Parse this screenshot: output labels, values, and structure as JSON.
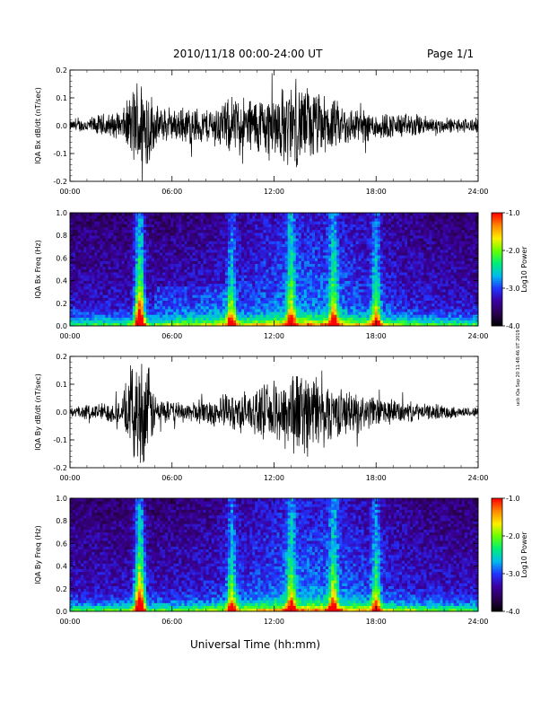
{
  "header": {
    "title": "2010/11/18  00:00-24:00 UT",
    "page": "Page 1/1"
  },
  "side_stamp": "ucb iQa Sep 20 11:48:46 UT 2019",
  "x_axis_title": "Universal Time (hh:mm)",
  "colors": {
    "background": "#ffffff",
    "trace": "#000000",
    "colorbar": [
      "#000000",
      "#2a004f",
      "#3a00a0",
      "#2233ff",
      "#00bbee",
      "#00ee77",
      "#66ff00",
      "#ffee00",
      "#ff8800",
      "#ff0000"
    ]
  },
  "chart_data": [
    {
      "type": "line",
      "ylabel": "IQA Bx dB/dt (nT/sec)",
      "xlim": [
        "00:00",
        "24:00"
      ],
      "ylim": [
        -0.2,
        0.2
      ],
      "x_ticks": [
        "00:00",
        "06:00",
        "12:00",
        "18:00",
        "24:00"
      ],
      "y_ticks": [
        "-0.2",
        "-0.1",
        "0.0",
        "0.1",
        "0.2"
      ],
      "envelope_hours": [
        0,
        1,
        2,
        3,
        3.5,
        4,
        4.5,
        5,
        6,
        7,
        8,
        9,
        10,
        11,
        12,
        13,
        14,
        15,
        16,
        17,
        18,
        19,
        20,
        21,
        22,
        23,
        24
      ],
      "envelope_amplitude": [
        0.02,
        0.03,
        0.05,
        0.05,
        0.12,
        0.21,
        0.21,
        0.08,
        0.06,
        0.08,
        0.07,
        0.1,
        0.12,
        0.12,
        0.14,
        0.17,
        0.16,
        0.12,
        0.09,
        0.07,
        0.06,
        0.05,
        0.05,
        0.04,
        0.03,
        0.03,
        0.03
      ]
    },
    {
      "type": "heatmap",
      "ylabel": "IQA Bx Freq (Hz)",
      "xlim": [
        "00:00",
        "24:00"
      ],
      "ylim": [
        0.0,
        1.0
      ],
      "x_ticks": [
        "00:00",
        "06:00",
        "12:00",
        "18:00",
        "24:00"
      ],
      "y_ticks": [
        "0.0",
        "0.2",
        "0.4",
        "0.6",
        "0.8",
        "1.0"
      ],
      "colorbar": {
        "label": "Log10 Power",
        "range": [
          -4.0,
          -1.0
        ],
        "ticks": [
          "-1.0",
          "-2.0",
          "-3.0",
          "-4.0"
        ]
      },
      "bright_bursts_hours": [
        4.0,
        4.2,
        9.5,
        13.0,
        15.5,
        18.0
      ]
    },
    {
      "type": "line",
      "ylabel": "IQA By dB/dt (nT/sec)",
      "xlim": [
        "00:00",
        "24:00"
      ],
      "ylim": [
        -0.2,
        0.2
      ],
      "x_ticks": [
        "00:00",
        "06:00",
        "12:00",
        "18:00",
        "24:00"
      ],
      "y_ticks": [
        "-0.2",
        "-0.1",
        "0.0",
        "0.1",
        "0.2"
      ],
      "envelope_hours": [
        0,
        1,
        2,
        3,
        3.5,
        4,
        4.5,
        5,
        6,
        7,
        8,
        9,
        10,
        11,
        12,
        13,
        14,
        15,
        16,
        17,
        18,
        19,
        20,
        21,
        22,
        23,
        24
      ],
      "envelope_amplitude": [
        0.02,
        0.03,
        0.04,
        0.05,
        0.15,
        0.22,
        0.22,
        0.07,
        0.04,
        0.04,
        0.05,
        0.07,
        0.08,
        0.09,
        0.12,
        0.18,
        0.17,
        0.13,
        0.09,
        0.08,
        0.06,
        0.05,
        0.04,
        0.03,
        0.03,
        0.02,
        0.02
      ]
    },
    {
      "type": "heatmap",
      "ylabel": "IQA By Freq (Hz)",
      "xlim": [
        "00:00",
        "24:00"
      ],
      "ylim": [
        0.0,
        1.0
      ],
      "x_ticks": [
        "00:00",
        "06:00",
        "12:00",
        "18:00",
        "24:00"
      ],
      "y_ticks": [
        "0.0",
        "0.2",
        "0.4",
        "0.6",
        "0.8",
        "1.0"
      ],
      "colorbar": {
        "label": "Log10 Power",
        "range": [
          -4.0,
          -1.0
        ],
        "ticks": [
          "-1.0",
          "-2.0",
          "-3.0",
          "-4.0"
        ]
      },
      "bright_bursts_hours": [
        4.0,
        4.2,
        9.5,
        13.0,
        15.5,
        18.0
      ]
    }
  ]
}
